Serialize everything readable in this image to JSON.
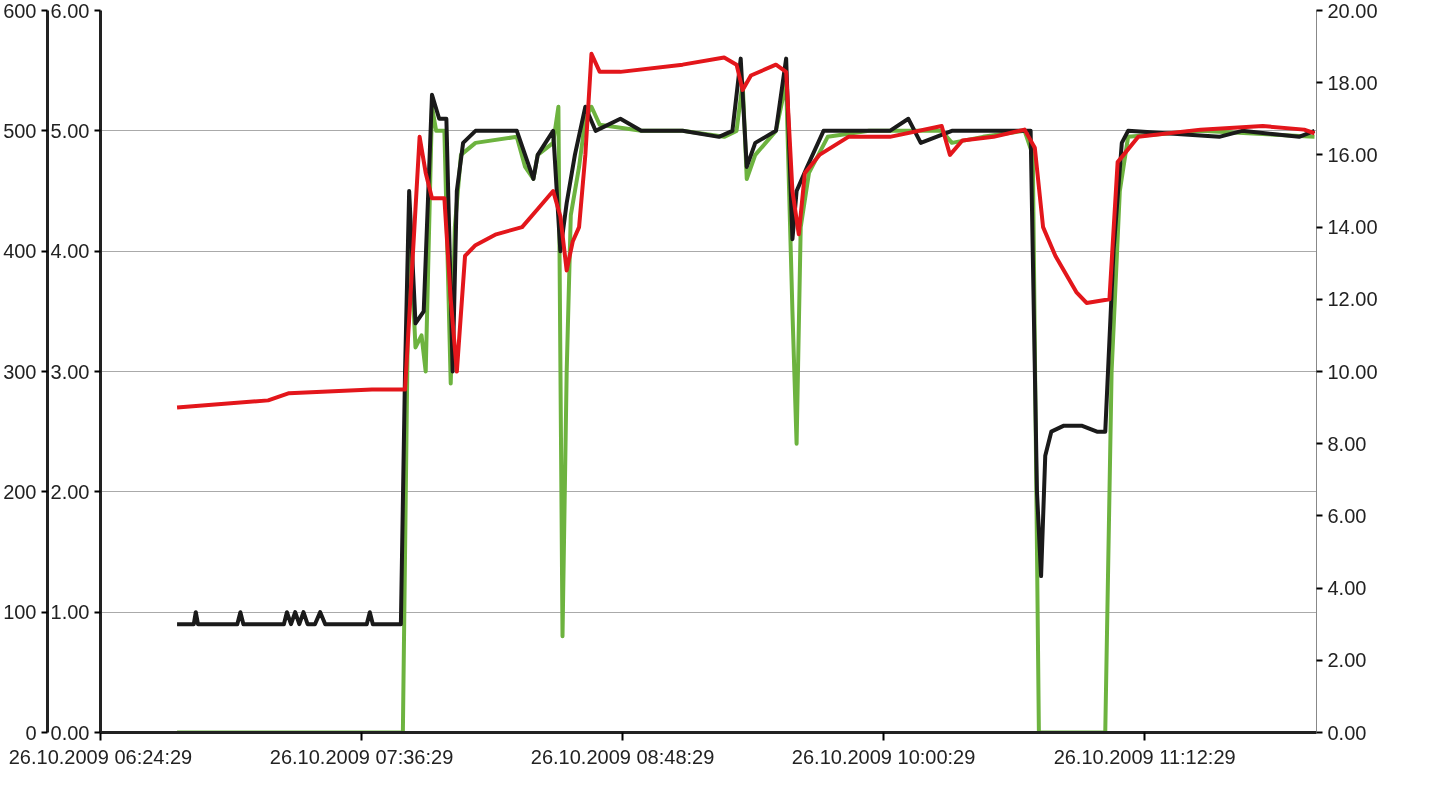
{
  "chart_data": {
    "type": "line",
    "xlim": [
      "2009-10-26T06:24:29",
      "2009-10-26T11:59:53"
    ],
    "xticks": [
      {
        "value": "2009-10-26T06:24:29",
        "label": "26.10.2009 06:24:29"
      },
      {
        "value": "2009-10-26T07:36:29",
        "label": "26.10.2009 07:36:29"
      },
      {
        "value": "2009-10-26T08:48:29",
        "label": "26.10.2009 08:48:29"
      },
      {
        "value": "2009-10-26T10:00:29",
        "label": "26.10.2009 10:00:29"
      },
      {
        "value": "2009-10-26T11:12:29",
        "label": "26.10.2009 11:12:29"
      }
    ],
    "ylim": [
      0,
      600
    ],
    "yticks": [
      0,
      100,
      200,
      300,
      400,
      500,
      600
    ],
    "y2lim": [
      0,
      6
    ],
    "y2ticks": [
      {
        "value": 0,
        "label": "0.00"
      },
      {
        "value": 1,
        "label": "1.00"
      },
      {
        "value": 2,
        "label": "2.00"
      },
      {
        "value": 3,
        "label": "3.00"
      },
      {
        "value": 4,
        "label": "4.00"
      },
      {
        "value": 5,
        "label": "5.00"
      },
      {
        "value": 6,
        "label": "6.00"
      }
    ],
    "y3lim": [
      0,
      20
    ],
    "y3ticks": [
      {
        "value": 0,
        "label": "0.00"
      },
      {
        "value": 2,
        "label": "2.00"
      },
      {
        "value": 4,
        "label": "4.00"
      },
      {
        "value": 6,
        "label": "6.00"
      },
      {
        "value": 8,
        "label": "8.00"
      },
      {
        "value": 10,
        "label": "10.00"
      },
      {
        "value": 12,
        "label": "12.00"
      },
      {
        "value": 14,
        "label": "14.00"
      },
      {
        "value": 16,
        "label": "16.00"
      },
      {
        "value": 18,
        "label": "18.00"
      },
      {
        "value": 20,
        "label": "20.00"
      }
    ],
    "grid": "y",
    "marker": "none",
    "line_style": "solid",
    "series": [
      {
        "color": "#6db33f",
        "axis": "y",
        "x": [
          "2009-10-26T06:45:36",
          "2009-10-26T07:47:53",
          "2009-10-26T07:49:37",
          "2009-10-26T07:51:22",
          "2009-10-26T07:53:02",
          "2009-10-26T07:54:11",
          "2009-10-26T07:55:55",
          "2009-10-26T07:57:04",
          "2009-10-26T07:59:20",
          "2009-10-26T08:01:05",
          "2009-10-26T08:02:13",
          "2009-10-26T08:03:54",
          "2009-10-26T08:07:55",
          "2009-10-26T08:19:19",
          "2009-10-26T08:21:36",
          "2009-10-26T08:23:53",
          "2009-10-26T08:25:05",
          "2009-10-26T08:29:20",
          "2009-10-26T08:30:47",
          "2009-10-26T08:31:55",
          "2009-10-26T08:33:04",
          "2009-10-26T08:34:12",
          "2009-10-26T08:36:29",
          "2009-10-26T08:38:13",
          "2009-10-26T08:39:54",
          "2009-10-26T08:42:11",
          "2009-10-26T08:53:38",
          "2009-10-26T09:05:02",
          "2009-10-26T09:16:30",
          "2009-10-26T09:19:55",
          "2009-10-26T09:21:36",
          "2009-10-26T09:22:44",
          "2009-10-26T09:25:05",
          "2009-10-26T09:30:47",
          "2009-10-26T09:33:36",
          "2009-10-26T09:35:20",
          "2009-10-26T09:36:29",
          "2009-10-26T09:37:37",
          "2009-10-26T09:39:54",
          "2009-10-26T09:45:04",
          "2009-10-26T09:56:28",
          "2009-10-26T10:16:30",
          "2009-10-26T10:19:19",
          "2009-10-26T10:27:54",
          "2009-10-26T10:39:22",
          "2009-10-26T10:41:38",
          "2009-10-26T10:43:19",
          "2009-10-26T11:01:37",
          "2009-10-26T11:03:22",
          "2009-10-26T11:05:38",
          "2009-10-26T11:07:55",
          "2009-10-26T11:27:54",
          "2009-10-26T11:59:20"
        ],
        "values": [
          0,
          0,
          430,
          320,
          330,
          300,
          520,
          500,
          500,
          290,
          420,
          480,
          490,
          495,
          470,
          460,
          480,
          490,
          520,
          80,
          300,
          430,
          470,
          510,
          520,
          505,
          500,
          500,
          495,
          500,
          540,
          460,
          480,
          500,
          540,
          350,
          240,
          420,
          465,
          495,
          500,
          500,
          490,
          495,
          500,
          480,
          0,
          0,
          300,
          450,
          495,
          500,
          495
        ]
      },
      {
        "color": "#1a1a1a",
        "axis": "y2",
        "x": [
          "2009-10-26T06:45:36",
          "2009-10-26T06:50:13",
          "2009-10-26T06:50:46",
          "2009-10-26T06:51:22",
          "2009-10-26T07:02:13",
          "2009-10-26T07:03:04",
          "2009-10-26T07:03:54",
          "2009-10-26T07:15:04",
          "2009-10-26T07:15:54",
          "2009-10-26T07:17:02",
          "2009-10-26T07:18:11",
          "2009-10-26T07:19:19",
          "2009-10-26T07:20:28",
          "2009-10-26T07:21:36",
          "2009-10-26T07:23:38",
          "2009-10-26T07:25:05",
          "2009-10-26T07:26:28",
          "2009-10-26T07:37:55",
          "2009-10-26T07:38:46",
          "2009-10-26T07:39:36",
          "2009-10-26T07:47:20",
          "2009-10-26T07:48:29",
          "2009-10-26T07:49:37",
          "2009-10-26T07:51:22",
          "2009-10-26T07:53:38",
          "2009-10-26T07:55:55",
          "2009-10-26T07:57:54",
          "2009-10-26T07:59:53",
          "2009-10-26T08:01:37",
          "2009-10-26T08:02:46",
          "2009-10-26T08:04:30",
          "2009-10-26T08:07:55",
          "2009-10-26T08:19:19",
          "2009-10-26T08:21:36",
          "2009-10-26T08:23:53",
          "2009-10-26T08:25:05",
          "2009-10-26T08:29:20",
          "2009-10-26T08:31:19",
          "2009-10-26T08:33:04",
          "2009-10-26T08:35:20",
          "2009-10-26T08:38:13",
          "2009-10-26T08:41:02",
          "2009-10-26T08:47:53",
          "2009-10-26T08:53:38",
          "2009-10-26T09:05:02",
          "2009-10-26T09:15:04",
          "2009-10-26T09:18:47",
          "2009-10-26T09:21:04",
          "2009-10-26T09:22:44",
          "2009-10-26T09:25:05",
          "2009-10-26T09:30:47",
          "2009-10-26T09:33:36",
          "2009-10-26T09:35:20",
          "2009-10-26T09:36:29",
          "2009-10-26T09:39:22",
          "2009-10-26T09:43:55",
          "2009-10-26T10:02:13",
          "2009-10-26T10:07:19",
          "2009-10-26T10:10:44",
          "2009-10-26T10:19:19",
          "2009-10-26T10:41:02",
          "2009-10-26T10:42:47",
          "2009-10-26T10:43:55",
          "2009-10-26T10:45:04",
          "2009-10-26T10:46:44",
          "2009-10-26T10:50:13",
          "2009-10-26T10:55:05",
          "2009-10-26T10:59:20",
          "2009-10-26T11:01:37",
          "2009-10-26T11:03:54",
          "2009-10-26T11:06:11",
          "2009-10-26T11:07:55",
          "2009-10-26T11:33:04",
          "2009-10-26T11:39:22",
          "2009-10-26T11:55:05",
          "2009-10-26T11:59:20"
        ],
        "values": [
          0.9,
          0.9,
          1.0,
          0.9,
          0.9,
          1.0,
          0.9,
          0.9,
          1.0,
          0.9,
          1.0,
          0.9,
          1.0,
          0.9,
          0.9,
          1.0,
          0.9,
          0.9,
          1.0,
          0.9,
          0.9,
          3.0,
          4.5,
          3.4,
          3.5,
          5.3,
          5.1,
          5.1,
          3.0,
          4.5,
          4.9,
          5.0,
          5.0,
          4.8,
          4.6,
          4.8,
          5.0,
          4.0,
          4.4,
          4.8,
          5.2,
          5.0,
          5.1,
          5.0,
          5.0,
          4.95,
          5.0,
          5.6,
          4.7,
          4.9,
          5.0,
          5.6,
          4.1,
          4.5,
          4.7,
          5.0,
          5.0,
          5.1,
          4.9,
          5.0,
          5.0,
          2.0,
          1.3,
          2.3,
          2.5,
          2.55,
          2.55,
          2.5,
          2.5,
          4.0,
          4.9,
          5.0,
          4.95,
          5.0,
          4.95,
          5.0
        ]
      },
      {
        "color": "#e3161b",
        "axis": "y3",
        "x": [
          "2009-10-26T06:45:36",
          "2009-10-26T07:10:44",
          "2009-10-26T07:16:30",
          "2009-10-26T07:39:22",
          "2009-10-26T07:48:29",
          "2009-10-26T07:50:13",
          "2009-10-26T07:52:30",
          "2009-10-26T07:54:11",
          "2009-10-26T07:55:55",
          "2009-10-26T07:59:20",
          "2009-10-26T08:01:05",
          "2009-10-26T08:02:46",
          "2009-10-26T08:05:02",
          "2009-10-26T08:07:55",
          "2009-10-26T08:13:37",
          "2009-10-26T08:20:46",
          "2009-10-26T08:25:05",
          "2009-10-26T08:29:20",
          "2009-10-26T08:31:19",
          "2009-10-26T08:33:04",
          "2009-10-26T08:34:44",
          "2009-10-26T08:36:29",
          "2009-10-26T08:38:13",
          "2009-10-26T08:39:54",
          "2009-10-26T08:42:11",
          "2009-10-26T08:47:53",
          "2009-10-26T09:05:02",
          "2009-10-26T09:16:30",
          "2009-10-26T09:19:55",
          "2009-10-26T09:21:36",
          "2009-10-26T09:23:53",
          "2009-10-26T09:30:47",
          "2009-10-26T09:33:36",
          "2009-10-26T09:35:20",
          "2009-10-26T09:37:05",
          "2009-10-26T09:38:46",
          "2009-10-26T09:42:47",
          "2009-10-26T09:50:46",
          "2009-10-26T10:02:13",
          "2009-10-26T10:16:30",
          "2009-10-26T10:18:47",
          "2009-10-26T10:22:12",
          "2009-10-26T10:30:47",
          "2009-10-26T10:39:22",
          "2009-10-26T10:42:11",
          "2009-10-26T10:44:28",
          "2009-10-26T10:47:53",
          "2009-10-26T10:53:38",
          "2009-10-26T10:56:28",
          "2009-10-26T11:02:46",
          "2009-10-26T11:05:02",
          "2009-10-26T11:10:44",
          "2009-10-26T11:27:54",
          "2009-10-26T11:45:04",
          "2009-10-26T11:56:28",
          "2009-10-26T11:59:20"
        ],
        "values": [
          9.0,
          9.2,
          9.4,
          9.5,
          9.5,
          12.5,
          16.5,
          15.5,
          14.8,
          14.8,
          12.0,
          10.0,
          13.2,
          13.5,
          13.8,
          14.0,
          14.5,
          15.0,
          14.3,
          12.8,
          13.6,
          14.0,
          16.0,
          18.8,
          18.3,
          18.3,
          18.5,
          18.7,
          18.5,
          17.8,
          18.2,
          18.5,
          18.3,
          15.0,
          13.8,
          15.5,
          16.0,
          16.5,
          16.5,
          16.8,
          16.0,
          16.4,
          16.5,
          16.7,
          16.2,
          14.0,
          13.2,
          12.2,
          11.9,
          12.0,
          15.8,
          16.5,
          16.7,
          16.8,
          16.7,
          16.6
        ]
      }
    ]
  }
}
